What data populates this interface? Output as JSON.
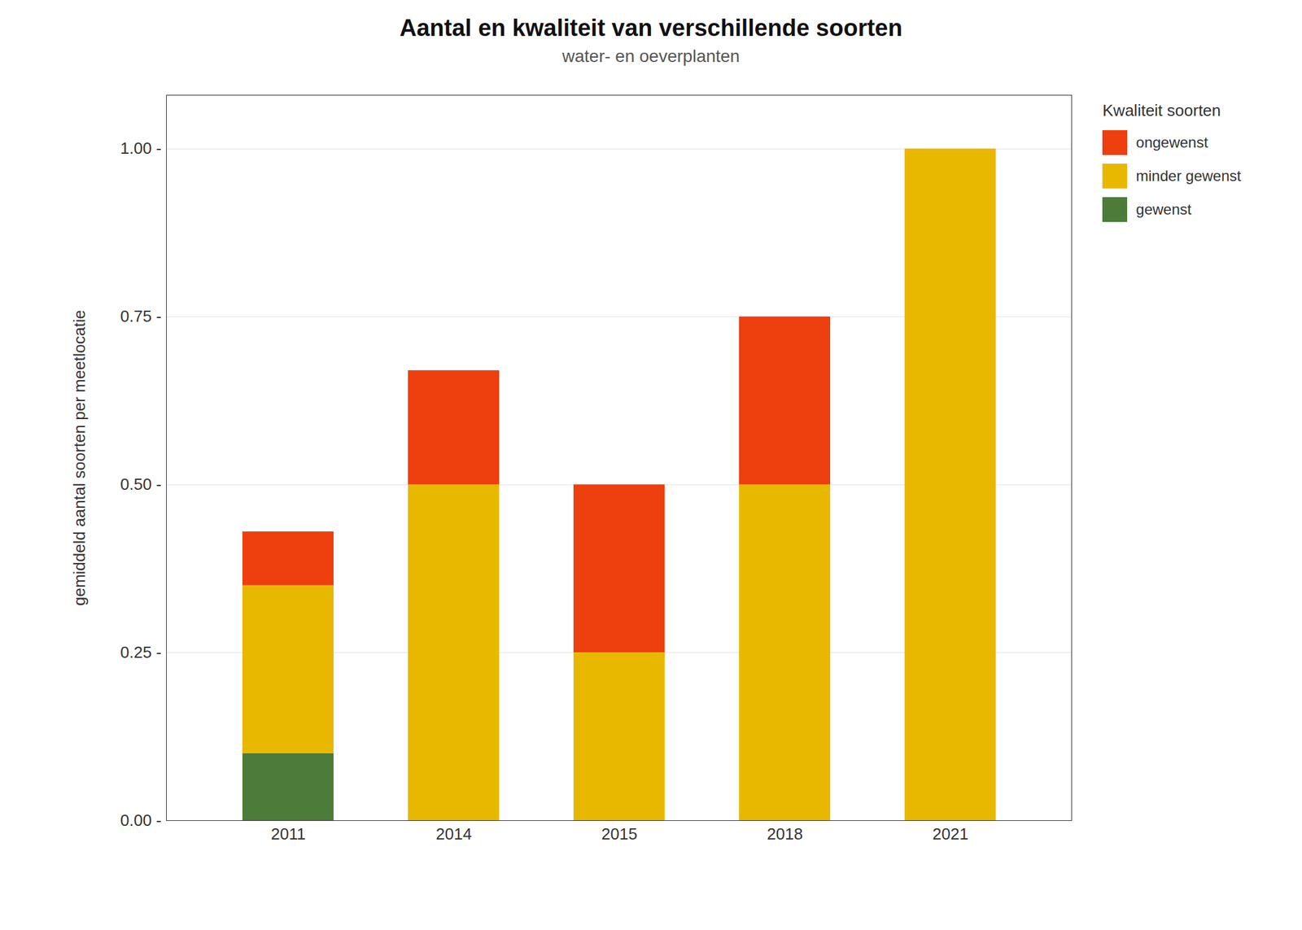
{
  "chart_data": {
    "type": "bar",
    "stacked": true,
    "title": "Aantal en kwaliteit van verschillende soorten",
    "subtitle": "water- en oeverplanten",
    "ylabel": "gemiddeld aantal soorten per meetlocatie",
    "categories": [
      "2011",
      "2014",
      "2015",
      "2018",
      "2021"
    ],
    "series": [
      {
        "name": "gewenst",
        "color": "#4d7c3a",
        "values": [
          0.1,
          0.0,
          0.0,
          0.0,
          0.0
        ]
      },
      {
        "name": "minder gewenst",
        "color": "#e8b800",
        "values": [
          0.25,
          0.5,
          0.25,
          0.5,
          1.0
        ]
      },
      {
        "name": "ongewenst",
        "color": "#ee3f0f",
        "values": [
          0.08,
          0.17,
          0.25,
          0.25,
          0.0
        ]
      }
    ],
    "legend_title": "Kwaliteit soorten",
    "legend": "right",
    "ylim": [
      0,
      1.08
    ],
    "yticks": [
      {
        "value": 0.0,
        "label": "0.00 -"
      },
      {
        "value": 0.25,
        "label": "0.25 -"
      },
      {
        "value": 0.5,
        "label": "0.50 -"
      },
      {
        "value": 0.75,
        "label": "0.75 -"
      },
      {
        "value": 1.0,
        "label": "1.00 -"
      }
    ],
    "grid": true
  }
}
